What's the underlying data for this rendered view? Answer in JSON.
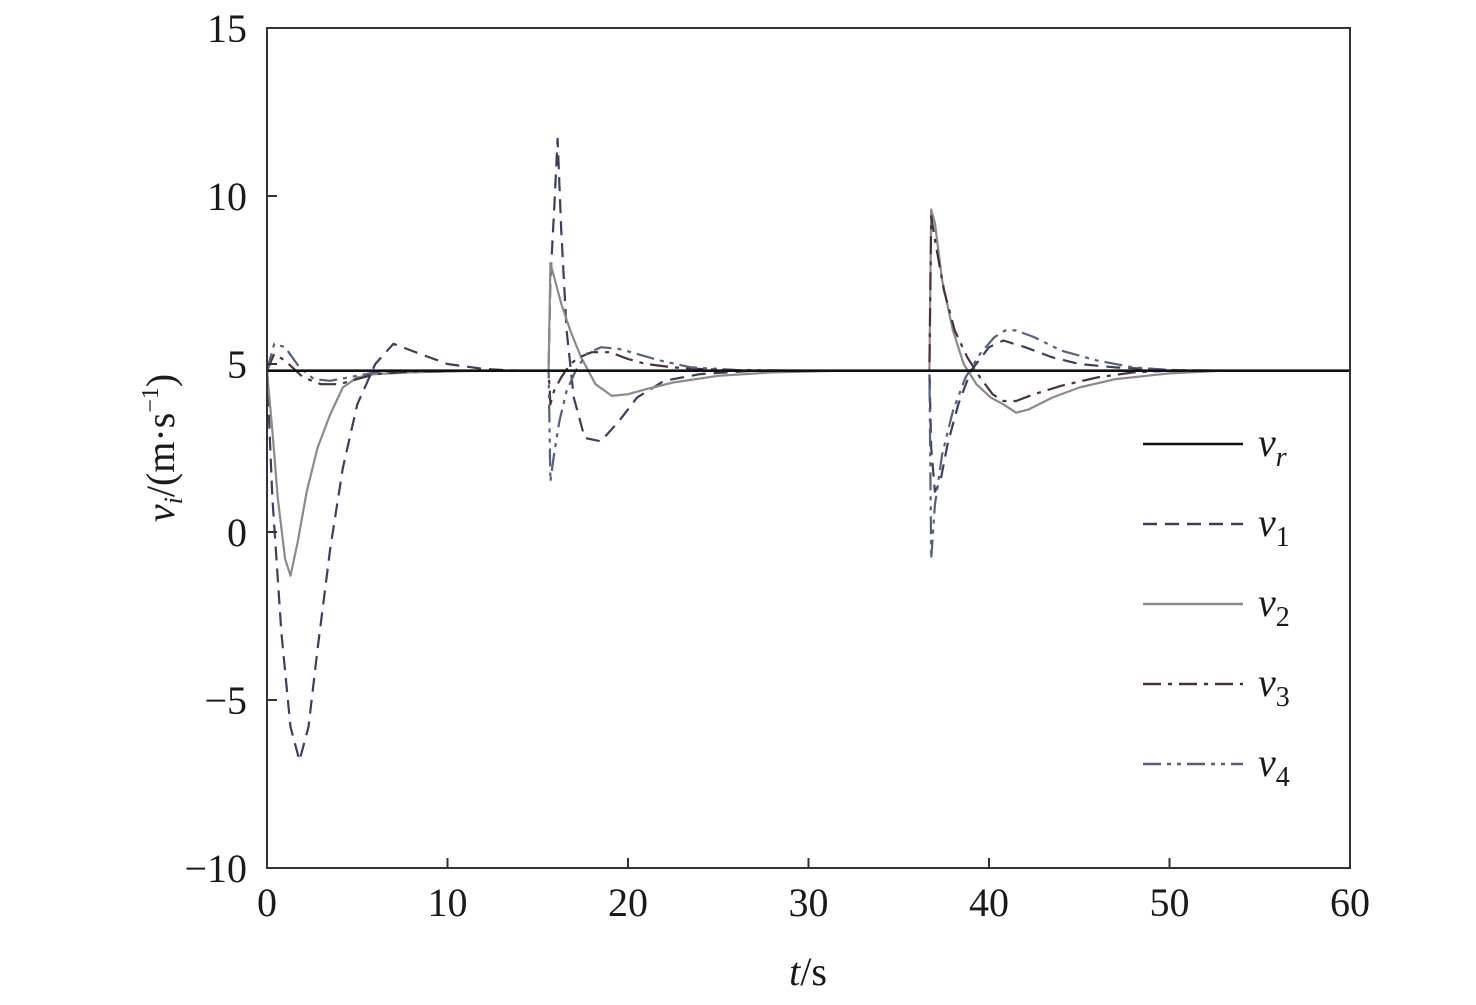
{
  "chart_data": {
    "type": "line",
    "xlabel": {
      "var": "t",
      "unit": "/s"
    },
    "ylabel": {
      "var": "v",
      "sub": "i",
      "unit": "/(m·s",
      "exp": "−1",
      "close": ")"
    },
    "xlim": [
      0,
      60
    ],
    "ylim": [
      -10,
      15
    ],
    "xticks": [
      0,
      10,
      20,
      30,
      40,
      50,
      60
    ],
    "yticks": [
      -10,
      -5,
      0,
      5,
      10,
      15
    ],
    "ytick_labels": [
      "−10",
      "−5",
      "0",
      "5",
      "10",
      "15"
    ],
    "legend_position": "right",
    "grid": false,
    "series": [
      {
        "name": "v",
        "sub": "r",
        "style": "solid",
        "color": "#111111",
        "x": [
          0,
          60
        ],
        "y": [
          4.8,
          4.8
        ]
      },
      {
        "name": "v",
        "sub": "1",
        "style": "dashed",
        "color": "#3a3f5c",
        "x": [
          0,
          0.3,
          0.8,
          1.3,
          1.8,
          2.3,
          2.8,
          3.5,
          4.2,
          5,
          6,
          7,
          8,
          10,
          12,
          14,
          15.6,
          15.7,
          15.9,
          16.1,
          16.3,
          16.6,
          17,
          17.6,
          18.5,
          19.5,
          20.5,
          22,
          24,
          27,
          30,
          35,
          36.7,
          36.8,
          37,
          37.3,
          37.7,
          38.3,
          39,
          40,
          40.8,
          42,
          43.5,
          45,
          47,
          49,
          51,
          55,
          60
        ],
        "y": [
          4.8,
          1.0,
          -3.0,
          -5.8,
          -6.8,
          -5.8,
          -3.5,
          -0.5,
          1.9,
          3.8,
          5.0,
          5.6,
          5.4,
          5.0,
          4.85,
          4.8,
          4.8,
          7.5,
          9.5,
          11.7,
          9.0,
          6.0,
          4.0,
          2.8,
          2.7,
          3.3,
          4.0,
          4.5,
          4.7,
          4.8,
          4.8,
          4.8,
          4.8,
          2.5,
          1.2,
          1.5,
          2.6,
          3.8,
          4.8,
          5.5,
          5.7,
          5.5,
          5.2,
          5.0,
          4.9,
          4.85,
          4.8,
          4.8,
          4.8
        ]
      },
      {
        "name": "v",
        "sub": "2",
        "style": "solid",
        "color": "#8a8a8a",
        "x": [
          0,
          0.3,
          0.6,
          1.0,
          1.3,
          1.7,
          2.2,
          2.8,
          3.5,
          4.2,
          5,
          6,
          8,
          12,
          15.6,
          15.7,
          15.9,
          16.3,
          16.8,
          17.4,
          18.2,
          19.1,
          20,
          21,
          22.5,
          25,
          28,
          32,
          36.7,
          36.8,
          37,
          37.4,
          38,
          38.6,
          39.3,
          40.1,
          40.8,
          41.5,
          42.2,
          43.5,
          45,
          47,
          50,
          53,
          60
        ],
        "y": [
          4.8,
          3.0,
          1.0,
          -0.8,
          -1.3,
          -0.3,
          1.2,
          2.5,
          3.5,
          4.3,
          4.6,
          4.7,
          4.75,
          4.8,
          4.8,
          8.0,
          7.6,
          6.8,
          6.0,
          5.2,
          4.4,
          4.05,
          4.1,
          4.25,
          4.45,
          4.65,
          4.75,
          4.8,
          4.8,
          9.6,
          9.2,
          7.5,
          6.0,
          5.0,
          4.4,
          4.0,
          3.8,
          3.55,
          3.65,
          4.0,
          4.3,
          4.55,
          4.72,
          4.8,
          4.8
        ]
      },
      {
        "name": "v",
        "sub": "3",
        "style": "dashdot",
        "color": "#4b3040",
        "x": [
          0,
          0.4,
          1,
          2,
          3,
          4,
          5,
          6,
          8,
          12,
          15.6,
          15.7,
          15.9,
          16.3,
          16.8,
          17.3,
          18,
          19,
          20,
          21,
          22.5,
          24,
          27,
          30,
          36.7,
          36.8,
          37,
          37.5,
          38.1,
          38.8,
          39.5,
          40.2,
          40.8,
          41.5,
          42.5,
          44,
          46,
          48,
          50,
          53,
          60
        ],
        "y": [
          4.8,
          5.3,
          5.1,
          4.6,
          4.4,
          4.4,
          4.55,
          4.7,
          4.78,
          4.8,
          4.8,
          3.8,
          4.2,
          4.6,
          5.0,
          5.2,
          5.35,
          5.35,
          5.15,
          5.0,
          4.9,
          4.85,
          4.8,
          4.8,
          4.8,
          9.4,
          8.7,
          7.2,
          6.0,
          5.2,
          4.6,
          4.1,
          3.9,
          3.9,
          4.1,
          4.35,
          4.6,
          4.75,
          4.8,
          4.8,
          4.8
        ]
      },
      {
        "name": "v",
        "sub": "4",
        "style": "dashdotdot",
        "color": "#56607e",
        "x": [
          0,
          0.4,
          1,
          1.8,
          2.6,
          3.5,
          4.5,
          6,
          8,
          12,
          15.6,
          15.7,
          15.9,
          16.2,
          16.6,
          17.1,
          17.7,
          18.5,
          19.5,
          20.5,
          21.8,
          23.5,
          26,
          30,
          36.7,
          36.8,
          37,
          37.4,
          38,
          38.7,
          39.5,
          40.3,
          40.9,
          41.5,
          42.5,
          44,
          46,
          48,
          50,
          53,
          60
        ],
        "y": [
          4.8,
          5.6,
          5.5,
          4.9,
          4.55,
          4.5,
          4.6,
          4.75,
          4.8,
          4.8,
          4.8,
          1.5,
          2.3,
          3.3,
          4.2,
          4.8,
          5.3,
          5.5,
          5.45,
          5.3,
          5.1,
          4.9,
          4.82,
          4.8,
          4.8,
          -0.8,
          0.8,
          2.3,
          3.6,
          4.6,
          5.3,
          5.8,
          6.0,
          6.0,
          5.8,
          5.4,
          5.1,
          4.9,
          4.82,
          4.8,
          4.8
        ]
      }
    ]
  }
}
